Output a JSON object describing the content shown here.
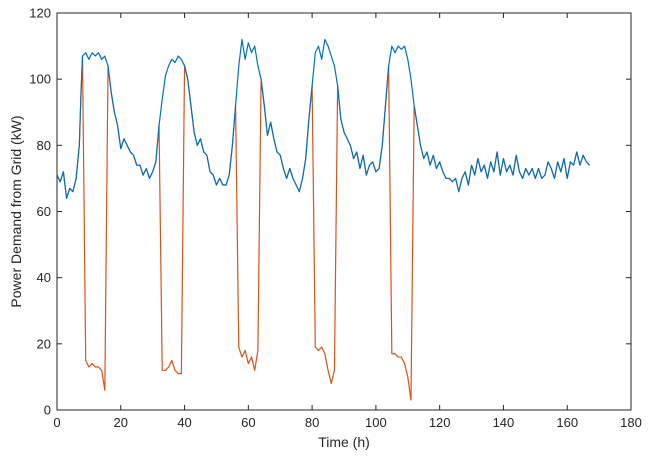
{
  "chart_data": {
    "type": "line",
    "title": "",
    "xlabel": "Time (h)",
    "ylabel": "Power Demand from Grid (kW)",
    "xlim": [
      0,
      180
    ],
    "ylim": [
      0,
      120
    ],
    "xticks": [
      0,
      20,
      40,
      60,
      80,
      100,
      120,
      140,
      160,
      180
    ],
    "yticks": [
      0,
      20,
      40,
      60,
      80,
      100,
      120
    ],
    "grid": false,
    "legend": "none",
    "series": [
      {
        "color": "#0072BD",
        "points": [
          [
            0,
            71
          ],
          [
            1,
            69
          ],
          [
            2,
            72
          ],
          [
            3,
            64
          ],
          [
            4,
            67
          ],
          [
            5,
            66
          ],
          [
            6,
            70
          ],
          [
            7,
            80
          ],
          [
            7.5,
            95
          ],
          [
            8,
            107
          ],
          [
            9,
            108
          ],
          [
            10,
            106
          ],
          [
            11,
            108
          ],
          [
            12,
            107
          ],
          [
            13,
            108
          ],
          [
            14,
            106
          ],
          [
            15,
            107
          ],
          [
            16,
            104
          ],
          [
            17,
            96
          ],
          [
            18,
            90
          ],
          [
            19,
            86
          ],
          [
            20,
            79
          ],
          [
            21,
            82
          ],
          [
            22,
            80
          ],
          [
            23,
            78
          ],
          [
            24,
            77
          ],
          [
            25,
            74
          ],
          [
            26,
            74
          ],
          [
            27,
            71
          ],
          [
            28,
            73
          ],
          [
            29,
            70
          ],
          [
            30,
            72
          ],
          [
            31,
            75
          ],
          [
            32,
            86
          ],
          [
            33,
            94
          ],
          [
            34,
            101
          ],
          [
            35,
            104
          ],
          [
            36,
            106
          ],
          [
            37,
            105
          ],
          [
            38,
            107
          ],
          [
            39,
            106
          ],
          [
            40,
            104
          ],
          [
            41,
            100
          ],
          [
            42,
            92
          ],
          [
            43,
            84
          ],
          [
            44,
            80
          ],
          [
            45,
            82
          ],
          [
            46,
            78
          ],
          [
            47,
            77
          ],
          [
            48,
            72
          ],
          [
            49,
            71
          ],
          [
            50,
            68
          ],
          [
            51,
            70
          ],
          [
            52,
            68
          ],
          [
            53,
            68
          ],
          [
            54,
            71
          ],
          [
            55,
            80
          ],
          [
            56,
            92
          ],
          [
            57,
            104
          ],
          [
            58,
            112
          ],
          [
            59,
            106
          ],
          [
            60,
            111
          ],
          [
            61,
            108
          ],
          [
            62,
            110
          ],
          [
            63,
            104
          ],
          [
            64,
            100
          ],
          [
            65,
            92
          ],
          [
            66,
            83
          ],
          [
            67,
            87
          ],
          [
            68,
            82
          ],
          [
            69,
            78
          ],
          [
            70,
            77
          ],
          [
            71,
            73
          ],
          [
            72,
            70
          ],
          [
            73,
            73
          ],
          [
            74,
            70
          ],
          [
            75,
            68
          ],
          [
            76,
            66
          ],
          [
            77,
            70
          ],
          [
            78,
            76
          ],
          [
            79,
            88
          ],
          [
            80,
            98
          ],
          [
            81,
            108
          ],
          [
            82,
            110
          ],
          [
            83,
            106
          ],
          [
            84,
            112
          ],
          [
            85,
            110
          ],
          [
            86,
            107
          ],
          [
            87,
            104
          ],
          [
            88,
            98
          ],
          [
            89,
            88
          ],
          [
            90,
            84
          ],
          [
            91,
            82
          ],
          [
            92,
            80
          ],
          [
            93,
            76
          ],
          [
            94,
            78
          ],
          [
            95,
            73
          ],
          [
            96,
            77
          ],
          [
            97,
            71
          ],
          [
            98,
            74
          ],
          [
            99,
            75
          ],
          [
            100,
            72
          ],
          [
            101,
            73
          ],
          [
            102,
            80
          ],
          [
            103,
            92
          ],
          [
            104,
            104
          ],
          [
            105,
            110
          ],
          [
            106,
            108
          ],
          [
            107,
            110
          ],
          [
            108,
            109
          ],
          [
            109,
            110
          ],
          [
            110,
            106
          ],
          [
            111,
            100
          ],
          [
            112,
            92
          ],
          [
            113,
            86
          ],
          [
            114,
            80
          ],
          [
            115,
            76
          ],
          [
            116,
            78
          ],
          [
            117,
            74
          ],
          [
            118,
            77
          ],
          [
            119,
            73
          ],
          [
            120,
            75
          ],
          [
            121,
            72
          ],
          [
            122,
            70
          ],
          [
            123,
            70
          ],
          [
            124,
            69
          ],
          [
            125,
            70
          ],
          [
            126,
            66
          ],
          [
            127,
            70
          ],
          [
            128,
            72
          ],
          [
            129,
            68
          ],
          [
            130,
            74
          ],
          [
            131,
            71
          ],
          [
            132,
            76
          ],
          [
            133,
            72
          ],
          [
            134,
            74
          ],
          [
            135,
            70
          ],
          [
            136,
            75
          ],
          [
            137,
            72
          ],
          [
            138,
            78
          ],
          [
            139,
            71
          ],
          [
            140,
            76
          ],
          [
            141,
            72
          ],
          [
            142,
            74
          ],
          [
            143,
            71
          ],
          [
            144,
            77
          ],
          [
            145,
            72
          ],
          [
            146,
            70
          ],
          [
            147,
            73
          ],
          [
            148,
            71
          ],
          [
            149,
            73
          ],
          [
            150,
            70
          ],
          [
            151,
            73
          ],
          [
            152,
            70
          ],
          [
            153,
            71
          ],
          [
            154,
            75
          ],
          [
            155,
            73
          ],
          [
            156,
            70
          ],
          [
            157,
            75
          ],
          [
            158,
            72
          ],
          [
            159,
            76
          ],
          [
            160,
            70
          ],
          [
            161,
            75
          ],
          [
            162,
            74
          ],
          [
            163,
            78
          ],
          [
            164,
            74
          ],
          [
            165,
            77
          ],
          [
            166,
            75
          ],
          [
            167,
            74
          ]
        ]
      },
      {
        "color": "#D95319",
        "points": [
          [
            0,
            71
          ],
          [
            1,
            69
          ],
          [
            2,
            72
          ],
          [
            3,
            64
          ],
          [
            4,
            67
          ],
          [
            5,
            66
          ],
          [
            6,
            70
          ],
          [
            7,
            80
          ],
          [
            7.5,
            95
          ],
          [
            8,
            107
          ],
          [
            9,
            15
          ],
          [
            10,
            13
          ],
          [
            11,
            14
          ],
          [
            12,
            13
          ],
          [
            13,
            13
          ],
          [
            14,
            12
          ],
          [
            15,
            6
          ],
          [
            16,
            104
          ],
          [
            17,
            96
          ],
          [
            18,
            90
          ],
          [
            19,
            86
          ],
          [
            20,
            79
          ],
          [
            21,
            82
          ],
          [
            22,
            80
          ],
          [
            23,
            78
          ],
          [
            24,
            77
          ],
          [
            25,
            74
          ],
          [
            26,
            74
          ],
          [
            27,
            71
          ],
          [
            28,
            73
          ],
          [
            29,
            70
          ],
          [
            30,
            72
          ],
          [
            31,
            75
          ],
          [
            32,
            86
          ],
          [
            33,
            12
          ],
          [
            34,
            12
          ],
          [
            35,
            13
          ],
          [
            36,
            15
          ],
          [
            37,
            12
          ],
          [
            38,
            11
          ],
          [
            39,
            11
          ],
          [
            40,
            104
          ],
          [
            41,
            100
          ],
          [
            42,
            92
          ],
          [
            43,
            84
          ],
          [
            44,
            80
          ],
          [
            45,
            82
          ],
          [
            46,
            78
          ],
          [
            47,
            77
          ],
          [
            48,
            72
          ],
          [
            49,
            71
          ],
          [
            50,
            68
          ],
          [
            51,
            70
          ],
          [
            52,
            68
          ],
          [
            53,
            68
          ],
          [
            54,
            71
          ],
          [
            55,
            80
          ],
          [
            56,
            92
          ],
          [
            57,
            19
          ],
          [
            58,
            16
          ],
          [
            59,
            18
          ],
          [
            60,
            14
          ],
          [
            61,
            16
          ],
          [
            62,
            12
          ],
          [
            63,
            18
          ],
          [
            64,
            100
          ],
          [
            65,
            92
          ],
          [
            66,
            83
          ],
          [
            67,
            87
          ],
          [
            68,
            82
          ],
          [
            69,
            78
          ],
          [
            70,
            77
          ],
          [
            71,
            73
          ],
          [
            72,
            70
          ],
          [
            73,
            73
          ],
          [
            74,
            70
          ],
          [
            75,
            68
          ],
          [
            76,
            66
          ],
          [
            77,
            70
          ],
          [
            78,
            76
          ],
          [
            79,
            88
          ],
          [
            80,
            98
          ],
          [
            81,
            19
          ],
          [
            82,
            18
          ],
          [
            83,
            19
          ],
          [
            84,
            17
          ],
          [
            85,
            12
          ],
          [
            86,
            8
          ],
          [
            87,
            12
          ],
          [
            88,
            98
          ],
          [
            89,
            88
          ],
          [
            90,
            84
          ],
          [
            91,
            82
          ],
          [
            92,
            80
          ],
          [
            93,
            76
          ],
          [
            94,
            78
          ],
          [
            95,
            73
          ],
          [
            96,
            77
          ],
          [
            97,
            71
          ],
          [
            98,
            74
          ],
          [
            99,
            75
          ],
          [
            100,
            72
          ],
          [
            101,
            73
          ],
          [
            102,
            80
          ],
          [
            103,
            92
          ],
          [
            104,
            104
          ],
          [
            105,
            17
          ],
          [
            106,
            17
          ],
          [
            107,
            16
          ],
          [
            108,
            16
          ],
          [
            109,
            14
          ],
          [
            110,
            10
          ],
          [
            111,
            3
          ],
          [
            112,
            92
          ],
          [
            113,
            86
          ],
          [
            114,
            80
          ],
          [
            115,
            76
          ],
          [
            116,
            78
          ],
          [
            117,
            74
          ],
          [
            118,
            77
          ],
          [
            119,
            73
          ],
          [
            120,
            75
          ],
          [
            121,
            72
          ],
          [
            122,
            70
          ],
          [
            123,
            70
          ],
          [
            124,
            69
          ],
          [
            125,
            70
          ],
          [
            126,
            66
          ],
          [
            127,
            70
          ],
          [
            128,
            72
          ],
          [
            129,
            68
          ],
          [
            130,
            74
          ],
          [
            131,
            71
          ],
          [
            132,
            76
          ],
          [
            133,
            72
          ],
          [
            134,
            74
          ],
          [
            135,
            70
          ],
          [
            136,
            75
          ],
          [
            137,
            72
          ],
          [
            138,
            78
          ],
          [
            139,
            71
          ],
          [
            140,
            76
          ],
          [
            141,
            72
          ],
          [
            142,
            74
          ],
          [
            143,
            71
          ],
          [
            144,
            77
          ],
          [
            145,
            72
          ],
          [
            146,
            70
          ],
          [
            147,
            73
          ],
          [
            148,
            71
          ],
          [
            149,
            73
          ],
          [
            150,
            70
          ],
          [
            151,
            73
          ],
          [
            152,
            70
          ],
          [
            153,
            71
          ],
          [
            154,
            75
          ],
          [
            155,
            73
          ],
          [
            156,
            70
          ],
          [
            157,
            75
          ],
          [
            158,
            72
          ],
          [
            159,
            76
          ],
          [
            160,
            70
          ],
          [
            161,
            75
          ],
          [
            162,
            74
          ],
          [
            163,
            78
          ],
          [
            164,
            74
          ],
          [
            165,
            77
          ],
          [
            166,
            75
          ],
          [
            167,
            74
          ]
        ]
      }
    ]
  }
}
